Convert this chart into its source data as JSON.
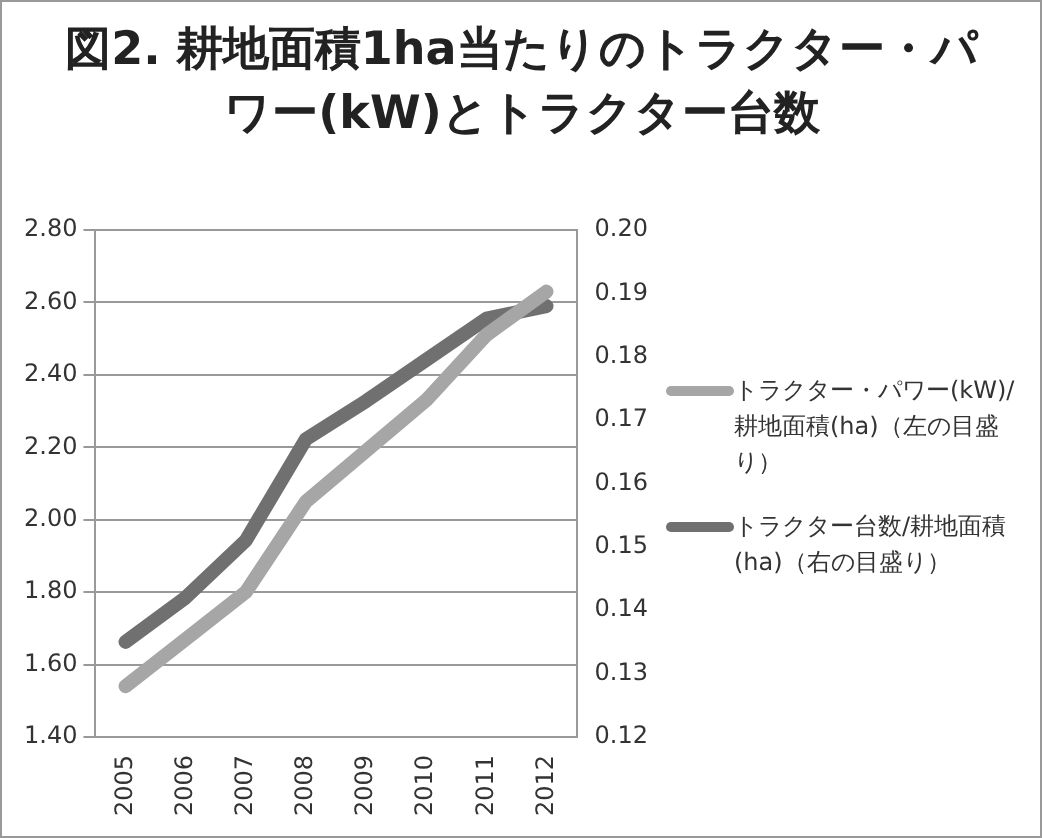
{
  "chart_data": {
    "type": "line",
    "title": "図2. 耕地面積1ha当たりのトラクター・パワー(kW)とトラクター台数",
    "categories": [
      "2005",
      "2006",
      "2007",
      "2008",
      "2009",
      "2010",
      "2011",
      "2012"
    ],
    "series": [
      {
        "name": "トラクター・パワー(kW)/耕地面積(ha)（左の目盛り）",
        "color": "#a6a6a6",
        "values": [
          1.54,
          1.67,
          1.8,
          2.05,
          2.19,
          2.33,
          2.51,
          2.63
        ]
      },
      {
        "name": "トラクター台数/耕地面積(ha)（右の目盛り）",
        "color": "#707070",
        "axis": "y2",
        "values": [
          0.135,
          0.142,
          0.151,
          0.167,
          0.173,
          0.1795,
          0.186,
          0.188
        ]
      }
    ],
    "ylim": [
      1.4,
      2.8
    ],
    "yticks": [
      {
        "value": 1.4,
        "label": "1.40"
      },
      {
        "value": 1.6,
        "label": "1.60"
      },
      {
        "value": 1.8,
        "label": "1.80"
      },
      {
        "value": 2,
        "label": "2.00"
      },
      {
        "value": 2.2,
        "label": "2.20"
      },
      {
        "value": 2.4,
        "label": "2.40"
      },
      {
        "value": 2.6,
        "label": "2.60"
      },
      {
        "value": 2.8,
        "label": "2.80"
      }
    ],
    "y2lim": [
      0.12,
      0.2
    ],
    "y2ticks": [
      {
        "value": 0.12,
        "label": "0.12"
      },
      {
        "value": 0.13,
        "label": "0.13"
      },
      {
        "value": 0.14,
        "label": "0.14"
      },
      {
        "value": 0.15,
        "label": "0.15"
      },
      {
        "value": 0.16,
        "label": "0.16"
      },
      {
        "value": 0.17,
        "label": "0.17"
      },
      {
        "value": 0.18,
        "label": "0.18"
      },
      {
        "value": 0.19,
        "label": "0.19"
      },
      {
        "value": 0.2,
        "label": "0.20"
      }
    ],
    "grid": "y",
    "legend": "right",
    "marker": "none",
    "line_style": "solid"
  }
}
